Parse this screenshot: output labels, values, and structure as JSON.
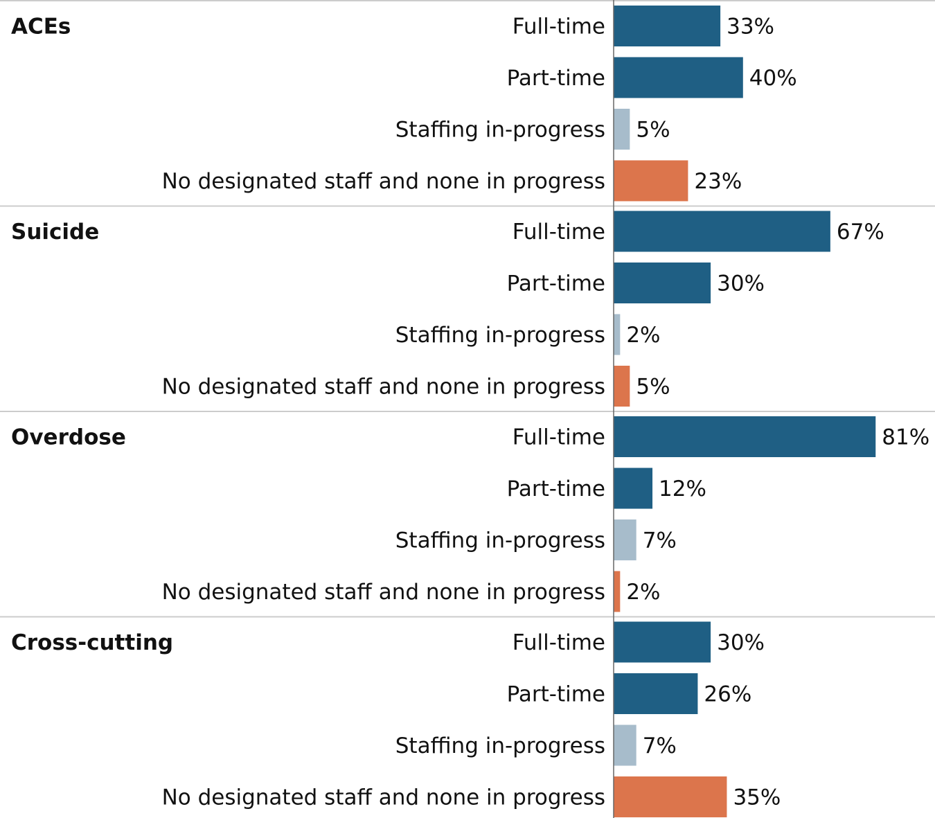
{
  "colors": {
    "full_time": "#1f5f84",
    "part_time": "#1f5f84",
    "in_progress": "#a7bccb",
    "none": "#dc754c",
    "separator": "#cccccc",
    "axis": "#666666",
    "text": "#111111"
  },
  "chart_data": {
    "type": "bar",
    "orientation": "horizontal",
    "title": "",
    "xlabel": "",
    "ylabel": "",
    "xlim": [
      0,
      100
    ],
    "unit": "%",
    "grid": false,
    "legend": "none",
    "categories": [
      "Full-time",
      "Part-time",
      "Staffing in-progress",
      "No designated staff and none in progress"
    ],
    "groups": [
      {
        "label": "ACEs",
        "bars": [
          {
            "category": "Full-time",
            "value": 33,
            "label": "33%",
            "color_key": "full_time"
          },
          {
            "category": "Part-time",
            "value": 40,
            "label": "40%",
            "color_key": "part_time"
          },
          {
            "category": "Staffing in-progress",
            "value": 5,
            "label": "5%",
            "color_key": "in_progress"
          },
          {
            "category": "No designated staff and none in progress",
            "value": 23,
            "label": "23%",
            "color_key": "none"
          }
        ]
      },
      {
        "label": "Suicide",
        "bars": [
          {
            "category": "Full-time",
            "value": 67,
            "label": "67%",
            "color_key": "full_time"
          },
          {
            "category": "Part-time",
            "value": 30,
            "label": "30%",
            "color_key": "part_time"
          },
          {
            "category": "Staffing in-progress",
            "value": 2,
            "label": "2%",
            "color_key": "in_progress"
          },
          {
            "category": "No designated staff and none in progress",
            "value": 5,
            "label": "5%",
            "color_key": "none"
          }
        ]
      },
      {
        "label": "Overdose",
        "bars": [
          {
            "category": "Full-time",
            "value": 81,
            "label": "81%",
            "color_key": "full_time"
          },
          {
            "category": "Part-time",
            "value": 12,
            "label": "12%",
            "color_key": "part_time"
          },
          {
            "category": "Staffing in-progress",
            "value": 7,
            "label": "7%",
            "color_key": "in_progress"
          },
          {
            "category": "No designated staff and none in progress",
            "value": 2,
            "label": "2%",
            "color_key": "none"
          }
        ]
      },
      {
        "label": "Cross-cutting",
        "bars": [
          {
            "category": "Full-time",
            "value": 30,
            "label": "30%",
            "color_key": "full_time"
          },
          {
            "category": "Part-time",
            "value": 26,
            "label": "26%",
            "color_key": "part_time"
          },
          {
            "category": "Staffing in-progress",
            "value": 7,
            "label": "7%",
            "color_key": "in_progress"
          },
          {
            "category": "No designated staff and none in progress",
            "value": 35,
            "label": "35%",
            "color_key": "none"
          }
        ]
      }
    ]
  }
}
